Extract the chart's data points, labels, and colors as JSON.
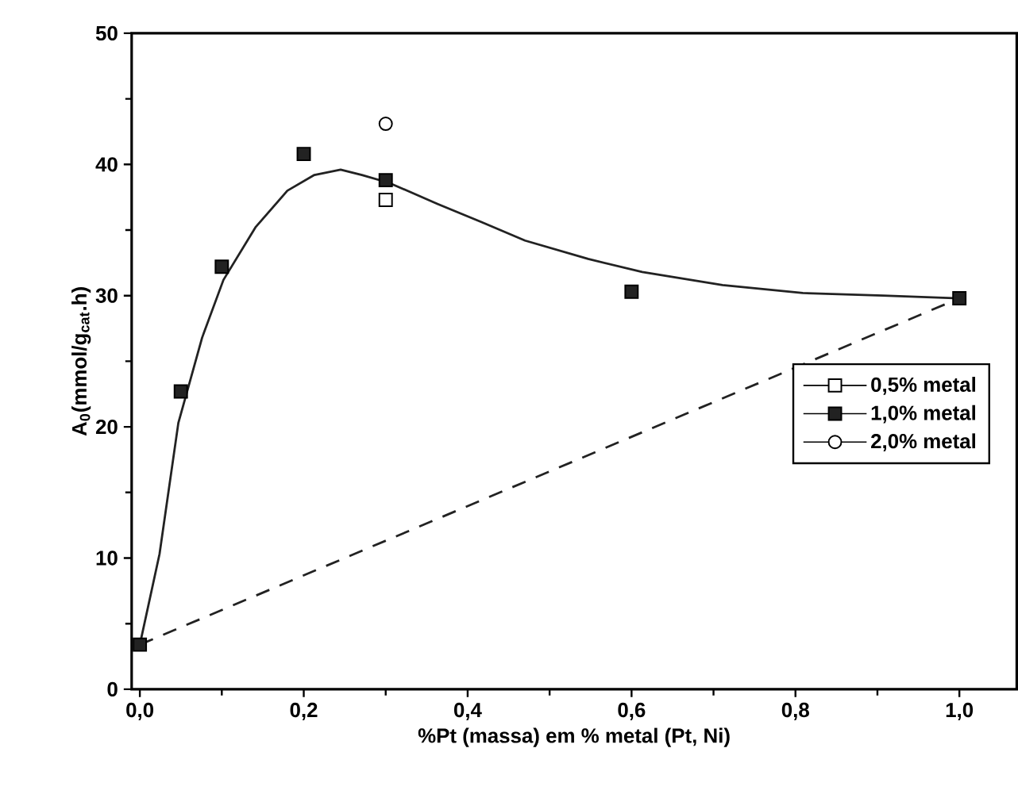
{
  "chart_data": {
    "type": "scatter",
    "xlabel": "%Pt (massa) em % metal (Pt, Ni)",
    "ylabel": "A$_{0}$(mmol/g$_{cat}$.h)",
    "xlim": [
      -0.01,
      1.07
    ],
    "ylim": [
      0,
      50
    ],
    "xticks": [
      {
        "value": 0,
        "label": "0,0"
      },
      {
        "value": 0.2,
        "label": "0,2"
      },
      {
        "value": 0.4,
        "label": "0,4"
      },
      {
        "value": 0.6,
        "label": "0,6"
      },
      {
        "value": 0.8,
        "label": "0,8"
      },
      {
        "value": 1.0,
        "label": "1,0"
      }
    ],
    "yticks": [
      0,
      10,
      20,
      30,
      40,
      50
    ],
    "grid": false,
    "legend": "right",
    "series": [
      {
        "name": "0,5% metal",
        "color": "#ffffff",
        "marker": "square",
        "x": [
          0.3
        ],
        "values": [
          37.3
        ]
      },
      {
        "name": "1,0% metal",
        "color": "#222222",
        "marker": "square",
        "x": [
          0,
          0.05,
          0.1,
          0.2,
          0.3,
          0.6,
          1.0
        ],
        "values": [
          3.4,
          22.7,
          32.2,
          40.8,
          38.8,
          30.3,
          29.8
        ]
      },
      {
        "name": "2,0% metal",
        "color": "#ffffff",
        "marker": "circle",
        "x": [
          0.3
        ],
        "values": [
          43.1
        ]
      },
      {
        "type": "line",
        "color": "#222222",
        "marker": "none",
        "line_style": "solid",
        "x": [
          0,
          0.024,
          0.047,
          0.076,
          0.102,
          0.141,
          0.18,
          0.213,
          0.245,
          0.271,
          0.304,
          0.363,
          0.417,
          0.47,
          0.547,
          0.613,
          0.711,
          0.809,
          0.907,
          1.0
        ],
        "values": [
          3.4,
          10.3,
          20.3,
          26.8,
          31.2,
          35.2,
          38.0,
          39.2,
          39.6,
          39.2,
          38.6,
          37.0,
          35.6,
          34.2,
          32.8,
          31.8,
          30.8,
          30.2,
          30.0,
          29.8
        ]
      },
      {
        "type": "line",
        "color": "#222222",
        "marker": "none",
        "line_style": "dashed",
        "x": [
          0,
          1.0
        ],
        "values": [
          3.4,
          29.8
        ]
      }
    ]
  }
}
